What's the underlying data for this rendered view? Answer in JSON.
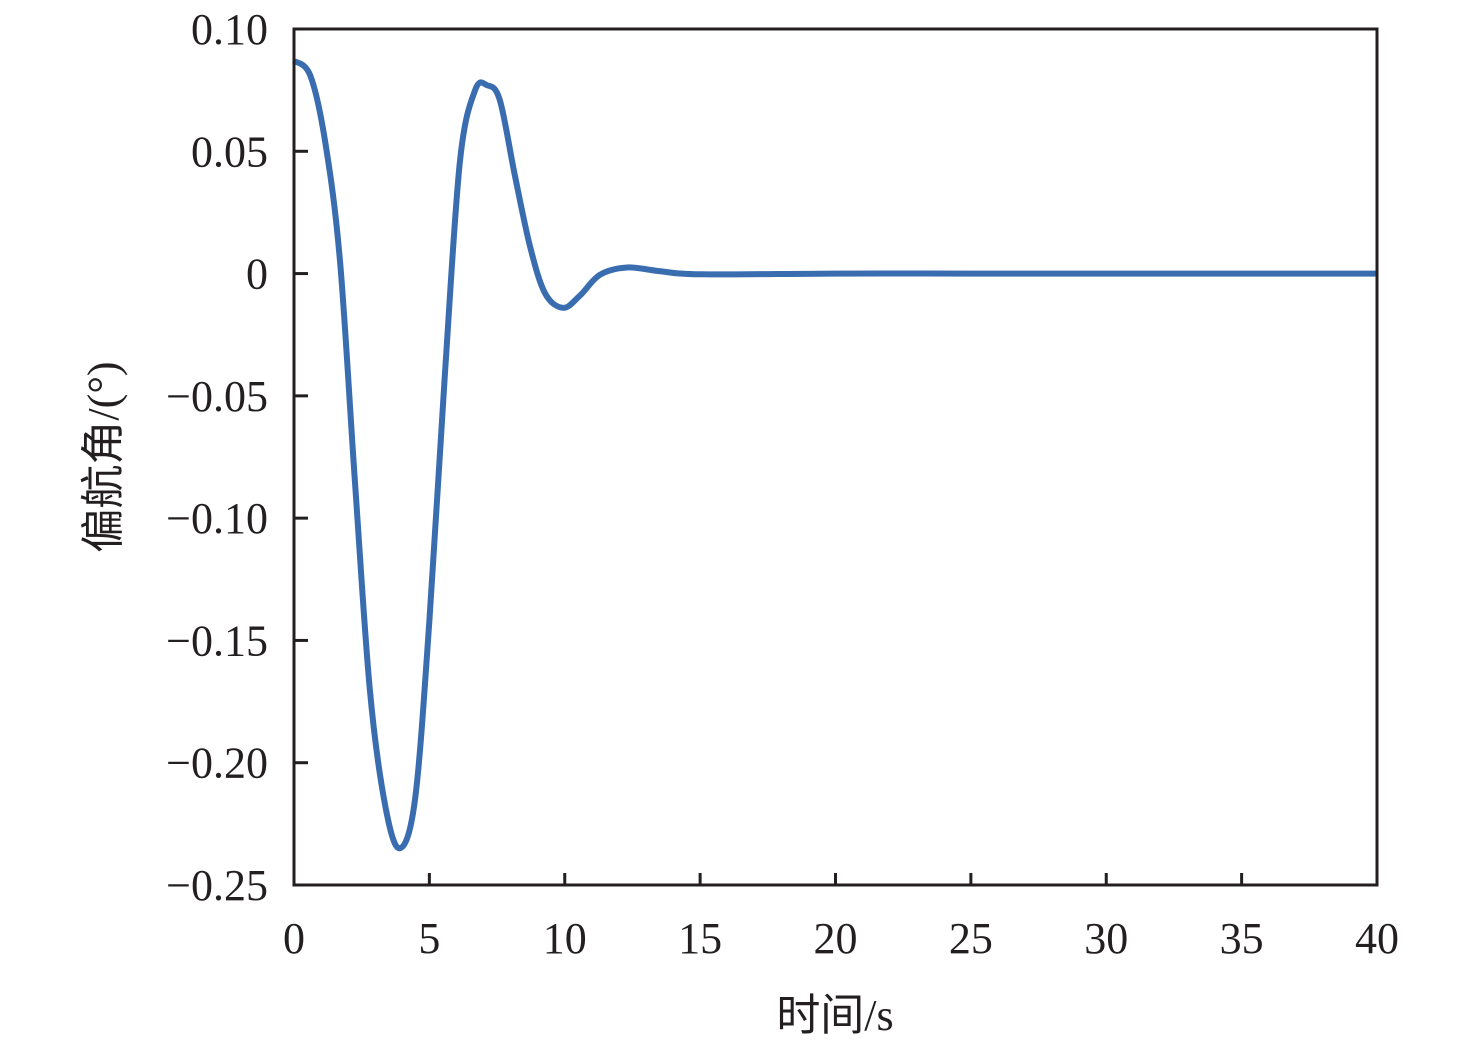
{
  "chart_data": {
    "type": "line",
    "title": "",
    "xlabel": "时间/s",
    "ylabel": "偏航角/(°)",
    "xlim": [
      0,
      40
    ],
    "ylim": [
      -0.25,
      0.1
    ],
    "xticks": [
      0,
      5,
      10,
      15,
      20,
      25,
      30,
      35,
      40
    ],
    "xtick_labels": [
      "0",
      "5",
      "10",
      "15",
      "20",
      "25",
      "30",
      "35",
      "40"
    ],
    "yticks": [
      0.1,
      0.05,
      0,
      -0.05,
      -0.1,
      -0.15,
      -0.2,
      -0.25
    ],
    "ytick_labels": [
      "0.10",
      "0.05",
      "0",
      "−0.05",
      "−0.10",
      "−0.15",
      "−0.20",
      "−0.25"
    ],
    "grid": false,
    "series": [
      {
        "color": "#3a6db0",
        "x": [
          0,
          0.6,
          1.15,
          1.7,
          2.25,
          2.8,
          3.36,
          3.9,
          4.47,
          5.0,
          5.58,
          6.13,
          6.69,
          7.13,
          7.6,
          8.16,
          8.72,
          9.27,
          9.94,
          10.56,
          11.3,
          12.3,
          13.5,
          15,
          20,
          25,
          30,
          35,
          40
        ],
        "y": [
          0.087,
          0.081,
          0.054,
          0.005,
          -0.085,
          -0.17,
          -0.217,
          -0.235,
          -0.215,
          -0.142,
          -0.04,
          0.046,
          0.075,
          0.077,
          0.071,
          0.04,
          0.011,
          -0.008,
          -0.014,
          -0.009,
          -0.0005,
          0.0025,
          0.001,
          -0.0003,
          0,
          0,
          0,
          0,
          0
        ]
      }
    ]
  }
}
